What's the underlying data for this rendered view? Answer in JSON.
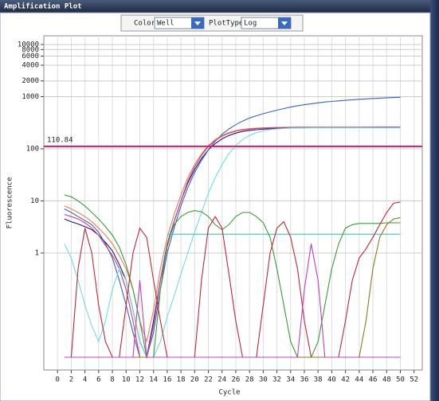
{
  "window_title": "Amplification Plot",
  "controls": {
    "color_label": "Color",
    "color_value": "Well",
    "plottype_label": "PlotType",
    "plottype_value": "Log"
  },
  "chart_data": {
    "type": "line",
    "x_label": "Cycle",
    "y_label": "Fluorescence",
    "log_y": true,
    "grid": true,
    "xlim": [
      -2,
      53.2
    ],
    "ylim": [
      0.0057,
      14700
    ],
    "xticks": [
      0,
      2,
      4,
      6,
      8,
      10,
      12,
      14,
      16,
      18,
      20,
      22,
      24,
      26,
      28,
      30,
      32,
      34,
      36,
      38,
      40,
      42,
      44,
      46,
      48,
      50,
      52
    ],
    "yticks": [
      1,
      10,
      100,
      1000,
      2000,
      4000,
      6000,
      8000,
      10000
    ],
    "threshold": 110.84,
    "threshold_color": "#e0206a",
    "x": [
      1,
      2,
      3,
      4,
      5,
      6,
      7,
      8,
      9,
      10,
      11,
      12,
      13,
      14,
      15,
      16,
      17,
      18,
      19,
      20,
      21,
      22,
      23,
      24,
      25,
      26,
      27,
      28,
      29,
      30,
      31,
      32,
      33,
      34,
      35,
      36,
      37,
      38,
      39,
      40,
      41,
      42,
      43,
      44,
      45,
      46,
      47,
      48,
      49,
      50
    ],
    "series": [
      {
        "color": "#1a1a8c",
        "values": [
          4.5,
          4,
          3.6,
          3.2,
          2.8,
          2.2,
          1.6,
          1.1,
          0.6,
          0.3,
          0.08,
          0.02,
          0.01,
          0.05,
          0.3,
          1.5,
          4,
          10,
          22,
          40,
          65,
          95,
          125,
          155,
          180,
          200,
          215,
          225,
          232,
          238,
          242,
          245,
          248,
          250,
          252,
          253,
          254,
          255,
          256,
          256,
          257,
          257,
          258,
          258,
          259,
          259,
          260,
          260,
          260,
          260
        ]
      },
      {
        "color": "#3a5fd0",
        "values": [
          7,
          6,
          5,
          4.2,
          3.5,
          2.5,
          1.5,
          0.8,
          0.3,
          0.1,
          0.03,
          0.01,
          0.01,
          0.03,
          0.2,
          1,
          3,
          8,
          18,
          35,
          60,
          95,
          140,
          190,
          240,
          290,
          340,
          390,
          430,
          470,
          510,
          550,
          590,
          630,
          670,
          700,
          730,
          760,
          790,
          810,
          830,
          850,
          870,
          890,
          905,
          920,
          935,
          950,
          960,
          970
        ]
      },
      {
        "color": "#e8805a",
        "values": [
          8,
          7,
          6,
          5,
          4,
          3,
          2.2,
          1.5,
          0.9,
          0.5,
          0.2,
          0.05,
          0.02,
          0.08,
          0.5,
          2,
          5.5,
          13,
          28,
          50,
          80,
          115,
          150,
          180,
          205,
          222,
          235,
          243,
          248,
          252,
          255,
          257,
          258,
          259,
          260,
          260,
          260,
          260,
          260,
          260,
          260,
          260,
          260,
          260,
          260,
          260,
          260,
          260,
          260,
          260
        ]
      },
      {
        "color": "#d04070",
        "values": [
          5.5,
          5,
          4.5,
          3.8,
          3,
          2.2,
          1.4,
          0.9,
          0.5,
          0.2,
          0.05,
          0.01,
          0.01,
          0.04,
          0.3,
          1.3,
          4,
          10,
          24,
          45,
          75,
          110,
          145,
          175,
          200,
          218,
          230,
          238,
          244,
          248,
          251,
          253,
          255,
          256,
          257,
          258,
          258,
          258,
          258,
          258,
          258,
          258,
          258,
          258,
          258,
          258,
          258,
          258,
          258,
          258
        ]
      },
      {
        "color": "#70dce6",
        "values": [
          1.5,
          0.8,
          0.3,
          0.1,
          0.04,
          0.02,
          0.05,
          0.2,
          0.5,
          0.3,
          0.08,
          0.02,
          0.01,
          0.01,
          0.02,
          0.06,
          0.15,
          0.4,
          1,
          2.5,
          6,
          14,
          28,
          50,
          80,
          115,
          150,
          180,
          205,
          220,
          232,
          240,
          245,
          248,
          250,
          251,
          252,
          252,
          252,
          252,
          252,
          252,
          252,
          252,
          252,
          252,
          252,
          252,
          252,
          252
        ]
      },
      {
        "color": "#40c8c0",
        "values": [
          null,
          null,
          null,
          null,
          null,
          null,
          null,
          null,
          null,
          null,
          null,
          null,
          null,
          null,
          null,
          2.3,
          2.3,
          2.3,
          2.3,
          2.3,
          2.3,
          2.3,
          2.3,
          2.3,
          2.3,
          2.3,
          2.3,
          2.3,
          2.3,
          2.3,
          2.3,
          2.3,
          2.3,
          2.3,
          2.3,
          2.3,
          2.3,
          2.3,
          2.3,
          2.3,
          2.3,
          2.3,
          2.3,
          2.3,
          2.3,
          2.3,
          2.3,
          2.3,
          2.3,
          2.3
        ]
      },
      {
        "color": "#3a9a3a",
        "values": [
          13,
          12,
          10,
          8,
          6,
          4.5,
          3.2,
          2.2,
          1.3,
          0.6,
          0.2,
          0.05,
          0.01,
          0.01,
          0.2,
          1.5,
          3.5,
          5,
          6,
          6.5,
          6.2,
          5,
          3.5,
          2.8,
          3.5,
          5,
          6,
          6,
          5,
          3.8,
          2,
          0.5,
          0.1,
          0.02,
          0.01,
          0.01,
          0.01,
          0.02,
          0.1,
          0.5,
          1.5,
          3,
          3.5,
          3.7,
          3.7,
          3.7,
          3.7,
          3.8,
          3.8,
          3.8
        ]
      },
      {
        "color": "#c02838",
        "values": [
          0.01,
          0.01,
          0.5,
          3,
          1,
          0.1,
          0.02,
          0.01,
          0.01,
          0.1,
          1,
          3,
          2,
          0.3,
          0.05,
          0.01,
          0.01,
          0.01,
          0.01,
          0.01,
          0.3,
          3,
          5,
          3,
          0.4,
          0.05,
          0.01,
          0.01,
          0.01,
          0.1,
          1,
          3,
          4,
          2,
          0.5,
          0.05,
          0.01,
          0.01,
          0.01,
          0.01,
          0.01,
          0.05,
          0.3,
          0.8,
          1.2,
          2,
          3.5,
          6,
          9,
          9.5
        ]
      },
      {
        "color": "#8a7a20",
        "values": [
          0.01,
          0.01,
          0.01,
          0.01,
          0.01,
          0.01,
          0.01,
          0.01,
          0.01,
          0.01,
          0.01,
          0.01,
          0.01,
          0.01,
          0.01,
          0.01,
          0.01,
          0.01,
          0.01,
          0.01,
          0.01,
          0.01,
          0.01,
          0.01,
          0.01,
          0.01,
          0.01,
          0.01,
          0.01,
          0.01,
          0.01,
          0.01,
          0.01,
          0.01,
          0.01,
          0.01,
          0.01,
          0.01,
          0.01,
          0.01,
          0.01,
          0.01,
          0.01,
          0.01,
          0.05,
          0.5,
          2,
          3.5,
          4.5,
          4.8
        ]
      },
      {
        "color": "#c040c0",
        "values": [
          0.01,
          0.01,
          0.01,
          0.01,
          0.01,
          0.01,
          0.01,
          0.01,
          0.01,
          0.01,
          0.01,
          0.3,
          0.01,
          0.01,
          0.01,
          0.01,
          0.01,
          0.01,
          0.01,
          0.01,
          0.01,
          0.01,
          0.01,
          0.01,
          0.01,
          0.01,
          0.01,
          0.01,
          0.01,
          0.01,
          0.01,
          0.01,
          0.01,
          0.01,
          0.01,
          0.2,
          1.5,
          0.3,
          0.01,
          0.01,
          0.01,
          0.01,
          0.01,
          0.01,
          0.01,
          0.01,
          0.01,
          0.01,
          0.01,
          0.01
        ]
      }
    ]
  }
}
